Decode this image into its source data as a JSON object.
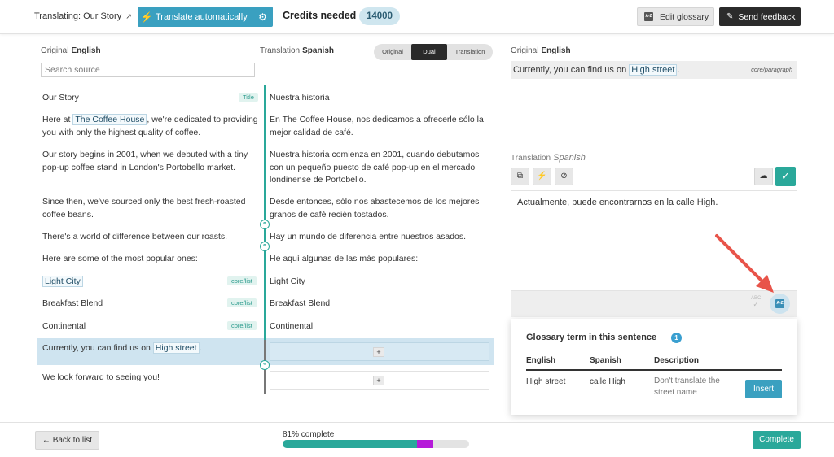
{
  "header": {
    "translating_label": "Translating:",
    "project_name": "Our Story",
    "translate_auto_label": "Translate automatically",
    "credits_label": "Credits needed",
    "credits_value": "14000",
    "edit_glossary_label": "Edit glossary",
    "send_feedback_label": "Send feedback"
  },
  "editor": {
    "original_label": "Original",
    "original_lang": "English",
    "translation_label": "Translation",
    "translation_lang": "Spanish",
    "search_placeholder": "Search source",
    "view_modes": [
      "Original",
      "Dual",
      "Translation"
    ],
    "active_view": "Dual",
    "rows": [
      {
        "src": "Our Story",
        "tgt": "Nuestra historia",
        "tag": "Title"
      },
      {
        "src_pre": "Here at ",
        "src_hl": "The Coffee House",
        "src_post": ", we're dedicated to providing you with only the highest quality of coffee.",
        "tgt": "En The Coffee House, nos dedicamos a ofrecerle sólo la mejor calidad de café."
      },
      {
        "src": "Our story begins in 2001, when we debuted with a tiny pop-up coffee stand in London's Portobello market.",
        "tgt": "Nuestra historia comienza en 2001, cuando debutamos con un pequeño puesto de café pop-up en el mercado londinense de Portobello."
      },
      {
        "src": "Since then, we've sourced only the best fresh-roasted coffee beans.",
        "tgt": "Desde entonces, sólo nos abastecemos de los mejores granos de café recién tostados."
      },
      {
        "src": "There's a world of difference between our roasts.",
        "tgt": "Hay un mundo de diferencia entre nuestros asados."
      },
      {
        "src": "Here are some of the most popular ones:",
        "tgt": "He aquí algunas de las más populares:"
      },
      {
        "src_hl": "Light City",
        "tgt": "Light City",
        "tag": "core/list"
      },
      {
        "src": "Breakfast Blend",
        "tgt": "Breakfast Blend",
        "tag": "core/list"
      },
      {
        "src": "Continental",
        "tgt": "Continental",
        "tag": "core/list"
      },
      {
        "src_pre": "Currently, you can find us on ",
        "src_hl": "High street",
        "src_post": ".",
        "tgt_button": "+"
      },
      {
        "src": "We look forward to seeing you!",
        "tgt_button": "+"
      }
    ]
  },
  "detail": {
    "original_label": "Original",
    "original_lang": "English",
    "original_pre": "Currently, you can find us on ",
    "original_hl": "High street",
    "original_post": ".",
    "block_type": "core/paragraph",
    "translation_label": "Translation",
    "translation_lang": "Spanish",
    "translation_text": "Actualmente, puede encontrarnos en la calle High.",
    "spellcheck_label": "ABC"
  },
  "glossary": {
    "title": "Glossary term in this sentence",
    "count": "1",
    "columns": [
      "English",
      "Spanish",
      "Description"
    ],
    "terms": [
      {
        "english": "High street",
        "spanish": "calle High",
        "description": "Don't translate the street name",
        "action": "Insert"
      }
    ]
  },
  "footer": {
    "back_label": "← Back to list",
    "progress_label": "81% complete",
    "progress": 0.81,
    "progress_extra": 0.09,
    "complete_label": "Complete"
  },
  "colors": {
    "accent": "#2aa89a",
    "button_blue": "#3aa0c0",
    "highlight_row": "#cfe4f0",
    "annotation_arrow": "#e8544a",
    "progress_extra": "#b51ad9"
  }
}
